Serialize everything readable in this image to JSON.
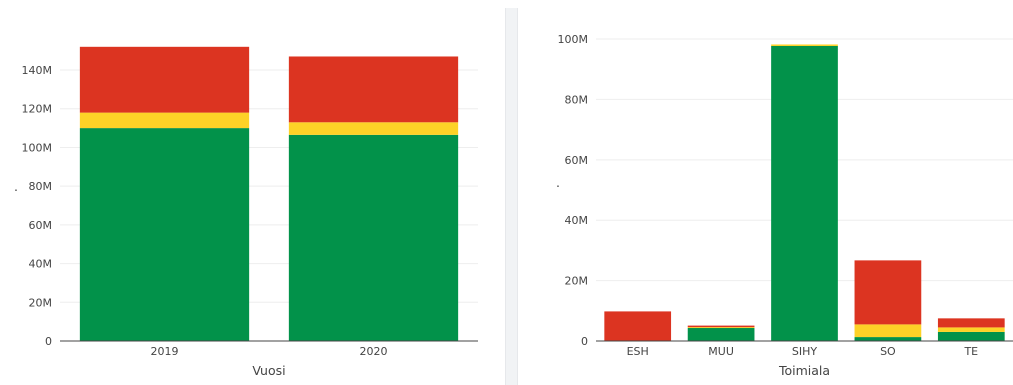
{
  "colors": {
    "green": "#02924a",
    "yellow": "#fdd227",
    "red": "#dc3421"
  },
  "chart_data": [
    {
      "type": "bar",
      "stacked": true,
      "categories": [
        "2019",
        "2020"
      ],
      "series": [
        {
          "color": "green",
          "values": [
            110,
            106.5
          ]
        },
        {
          "color": "yellow",
          "values": [
            8,
            6.5
          ]
        },
        {
          "color": "red",
          "values": [
            34,
            34
          ]
        }
      ],
      "xlabel": "Vuosi",
      "ylabel": ".",
      "ylim": [
        0,
        155
      ],
      "yticks": [
        0,
        20,
        40,
        60,
        80,
        100,
        120,
        140
      ],
      "ytick_labels": [
        "0",
        "20M",
        "40M",
        "60M",
        "80M",
        "100M",
        "120M",
        "140M"
      ],
      "grid": true
    },
    {
      "type": "bar",
      "stacked": true,
      "categories": [
        "ESH",
        "MUU",
        "SIHY",
        "SO",
        "TE"
      ],
      "series": [
        {
          "color": "green",
          "values": [
            0,
            4.3,
            97.7,
            1.3,
            3
          ]
        },
        {
          "color": "yellow",
          "values": [
            0,
            0.3,
            0.5,
            4.2,
            1.5
          ]
        },
        {
          "color": "red",
          "values": [
            9.8,
            0.5,
            0,
            21.2,
            3
          ]
        }
      ],
      "xlabel": "Toimiala",
      "ylabel": ".",
      "ylim": [
        0,
        102
      ],
      "yticks": [
        0,
        20,
        40,
        60,
        80,
        100
      ],
      "ytick_labels": [
        "0",
        "20M",
        "40M",
        "60M",
        "80M",
        "100M"
      ],
      "grid": true
    }
  ]
}
